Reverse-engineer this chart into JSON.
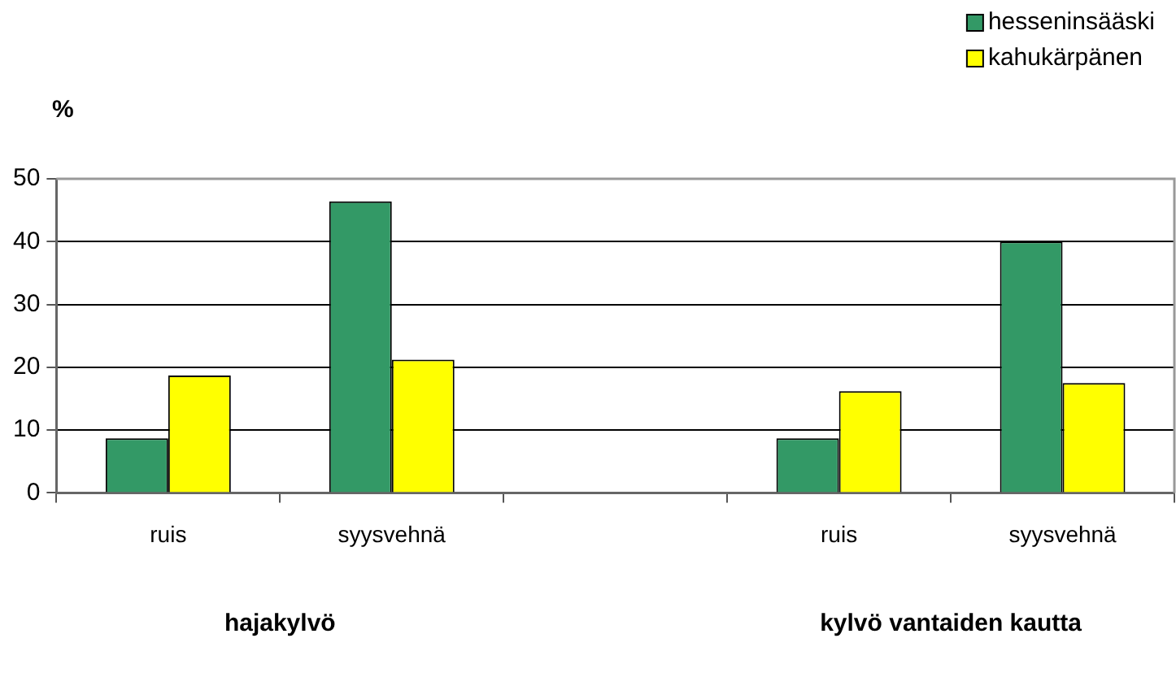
{
  "chart_data": {
    "type": "bar",
    "ylabel": "%",
    "categories": [
      "ruis",
      "syysvehnä",
      null,
      "ruis",
      "syysvehnä"
    ],
    "series": [
      {
        "name": "hesseninsääski",
        "color": "#339966",
        "values": [
          8.7,
          46.4,
          null,
          8.7,
          40
        ]
      },
      {
        "name": "kahukärpänen",
        "color": "#ffff00",
        "values": [
          18.7,
          21.2,
          null,
          16.2,
          17.5
        ]
      }
    ],
    "ylim": [
      0,
      50
    ],
    "yticks": [
      0,
      10,
      20,
      30,
      40,
      50
    ],
    "grid": "y",
    "legend": "top right",
    "annotations": [
      "hajakylvö",
      "kylvö vantaiden kautta"
    ]
  }
}
